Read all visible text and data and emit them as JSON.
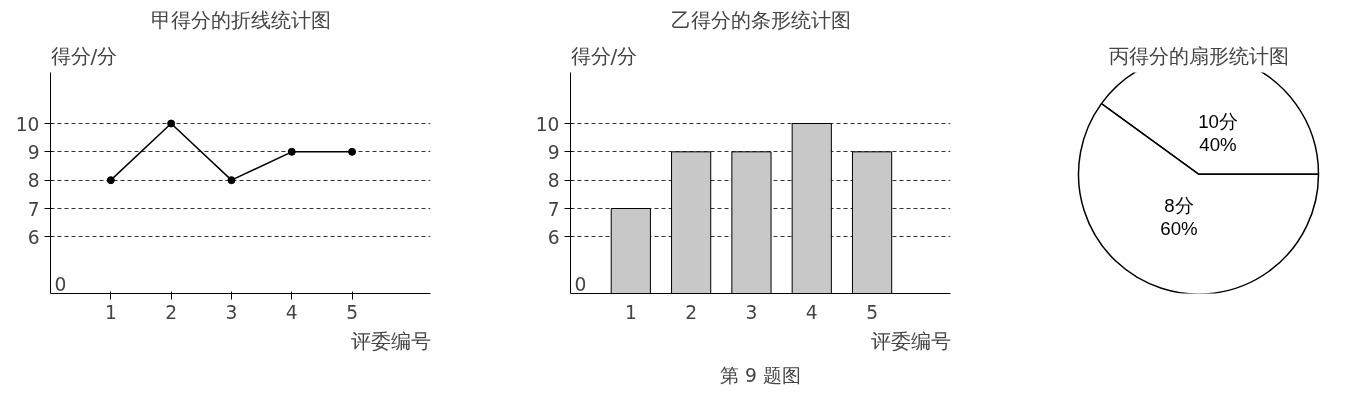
{
  "chart_data": [
    {
      "type": "line",
      "title": "甲得分的折线统计图",
      "xlabel": "评委编号",
      "ylabel": "得分/分",
      "x": [
        1,
        2,
        3,
        4,
        5
      ],
      "series": [
        {
          "color": "#000000",
          "values": [
            8,
            10,
            8,
            9,
            9
          ]
        }
      ],
      "xlim": [
        0,
        6.3
      ],
      "xticks": [
        1,
        2,
        3,
        4,
        5
      ],
      "ylim": [
        4,
        11.8
      ],
      "yticks": [
        6,
        7,
        8,
        9,
        10
      ],
      "annotations": [
        "0"
      ],
      "grid": "y",
      "marker": "circle",
      "line_style": "solid"
    },
    {
      "type": "bar",
      "title": "乙得分的条形统计图",
      "xlabel": "评委编号",
      "ylabel": "得分/分",
      "categories": [
        "1",
        "2",
        "3",
        "4",
        "5"
      ],
      "series": [
        {
          "color": "#c8c8c8",
          "values": [
            7,
            9,
            9,
            10,
            9
          ]
        }
      ],
      "ylim": [
        4,
        11.8
      ],
      "yticks": [
        6,
        7,
        8,
        9,
        10
      ],
      "grid": "y",
      "annotations": [
        "0",
        "第 9 题图"
      ]
    },
    {
      "type": "pie",
      "title": "丙得分的扇形统计图",
      "categories": [
        "10分",
        "8分"
      ],
      "values": [
        40,
        60
      ],
      "colors": [
        "#ffffff",
        "#ffffff"
      ],
      "value_labels": [
        "40%",
        "60%"
      ]
    }
  ]
}
